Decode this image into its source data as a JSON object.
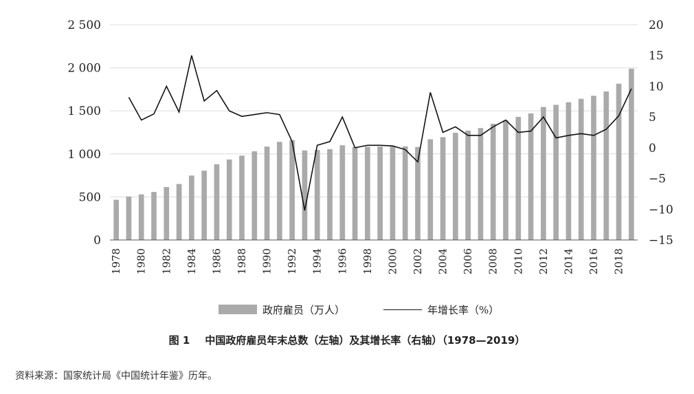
{
  "chart_data": {
    "type": "bar+line",
    "categories": [
      "1978",
      "1979",
      "1980",
      "1981",
      "1982",
      "1983",
      "1984",
      "1985",
      "1986",
      "1987",
      "1988",
      "1989",
      "1990",
      "1991",
      "1992",
      "1993",
      "1994",
      "1995",
      "1996",
      "1997",
      "1998",
      "1999",
      "2000",
      "2001",
      "2002",
      "2003",
      "2004",
      "2005",
      "2006",
      "2007",
      "2008",
      "2009",
      "2010",
      "2011",
      "2012",
      "2013",
      "2014",
      "2015",
      "2016",
      "2017",
      "2018",
      "2019"
    ],
    "x_tick_labels": [
      "1978",
      "1980",
      "1982",
      "1984",
      "1986",
      "1988",
      "1990",
      "1992",
      "1994",
      "1996",
      "1998",
      "2000",
      "2002",
      "2004",
      "2006",
      "2008",
      "2010",
      "2012",
      "2014",
      "2016",
      "2018"
    ],
    "series": [
      {
        "name": "政府雇员（万人）",
        "type": "bar",
        "axis": "left",
        "color": "#aaaaaa",
        "values": [
          467,
          505,
          530,
          558,
          615,
          650,
          748,
          805,
          880,
          935,
          980,
          1030,
          1085,
          1140,
          1160,
          1040,
          1045,
          1055,
          1100,
          1080,
          1082,
          1085,
          1087,
          1088,
          1080,
          1170,
          1195,
          1245,
          1270,
          1300,
          1350,
          1390,
          1430,
          1470,
          1545,
          1570,
          1600,
          1640,
          1675,
          1725,
          1815,
          1990
        ]
      },
      {
        "name": "年增长率（%）",
        "type": "line",
        "axis": "right",
        "color": "#111111",
        "values": [
          null,
          8.2,
          4.5,
          5.5,
          10.0,
          5.8,
          15.0,
          7.6,
          9.3,
          6.0,
          5.1,
          5.4,
          5.7,
          5.4,
          1.0,
          -10.2,
          0.4,
          1.0,
          5.0,
          0.0,
          0.4,
          0.4,
          0.3,
          -0.3,
          -2.3,
          9.0,
          2.5,
          3.4,
          2.0,
          2.0,
          3.4,
          4.5,
          2.5,
          2.7,
          5.0,
          1.6,
          2.0,
          2.3,
          2.0,
          3.0,
          5.2,
          9.6
        ]
      }
    ],
    "y_left": {
      "min": 0,
      "max": 2500,
      "ticks": [
        0,
        500,
        1000,
        1500,
        2000,
        2500
      ],
      "tick_labels": [
        "0",
        "500",
        "1 000",
        "1 500",
        "2 000",
        "2 500"
      ]
    },
    "y_right": {
      "min": -15,
      "max": 20,
      "ticks": [
        -15,
        -10,
        -5,
        0,
        5,
        10,
        15,
        20
      ],
      "tick_labels": [
        "−15",
        "−10",
        "−5",
        "0",
        "5",
        "10",
        "15",
        "20"
      ]
    },
    "grid": "horizontal",
    "legend_position": "bottom"
  },
  "legend": {
    "bar_label": "政府雇员（万人）",
    "line_label": "年增长率（%）"
  },
  "caption": {
    "fig_no": "图 1",
    "title": "中国政府雇员年末总数（左轴）及其增长率（右轴）（1978—2019）"
  },
  "source": "资料来源：国家统计局《中国统计年鉴》历年。"
}
